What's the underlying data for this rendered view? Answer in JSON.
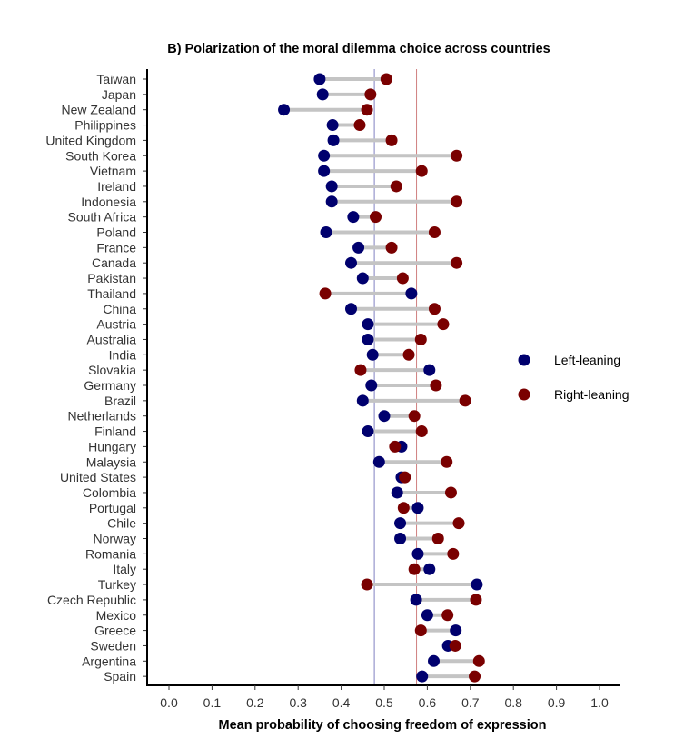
{
  "chart_data": {
    "type": "scatter",
    "subtype": "dumbbell",
    "title": "B) Polarization of the moral dilemma choice across countries",
    "xlabel": "Mean probability of choosing freedom of expression",
    "ylabel": "",
    "xlim": [
      0.0,
      1.0
    ],
    "xticks": [
      "0.0",
      "0.1",
      "0.2",
      "0.3",
      "0.4",
      "0.5",
      "0.6",
      "0.7",
      "0.8",
      "0.9",
      "1.0"
    ],
    "grid": false,
    "legend_position": "right",
    "categories": [
      "Taiwan",
      "Japan",
      "New Zealand",
      "Philippines",
      "United Kingdom",
      "South Korea",
      "Vietnam",
      "Ireland",
      "Indonesia",
      "South Africa",
      "Poland",
      "France",
      "Canada",
      "Pakistan",
      "Thailand",
      "China",
      "Austria",
      "Australia",
      "India",
      "Slovakia",
      "Germany",
      "Brazil",
      "Netherlands",
      "Finland",
      "Hungary",
      "Malaysia",
      "United States",
      "Colombia",
      "Portugal",
      "Chile",
      "Norway",
      "Romania",
      "Italy",
      "Turkey",
      "Czech Republic",
      "Mexico",
      "Greece",
      "Sweden",
      "Argentina",
      "Spain"
    ],
    "series": [
      {
        "name": "Left-leaning",
        "color": "#00006e",
        "values": [
          0.35,
          0.357,
          0.267,
          0.38,
          0.382,
          0.36,
          0.36,
          0.378,
          0.378,
          0.428,
          0.365,
          0.44,
          0.423,
          0.45,
          0.563,
          0.423,
          0.462,
          0.462,
          0.473,
          0.605,
          0.47,
          0.45,
          0.5,
          0.462,
          0.54,
          0.488,
          0.54,
          0.53,
          0.578,
          0.537,
          0.537,
          0.578,
          0.605,
          0.715,
          0.574,
          0.6,
          0.666,
          0.648,
          0.615,
          0.588
        ]
      },
      {
        "name": "Right-leaning",
        "color": "#7a0000",
        "values": [
          0.505,
          0.468,
          0.46,
          0.443,
          0.517,
          0.668,
          0.587,
          0.528,
          0.668,
          0.48,
          0.617,
          0.517,
          0.668,
          0.543,
          0.363,
          0.617,
          0.637,
          0.585,
          0.557,
          0.445,
          0.62,
          0.688,
          0.57,
          0.587,
          0.525,
          0.645,
          0.548,
          0.655,
          0.545,
          0.673,
          0.625,
          0.66,
          0.57,
          0.46,
          0.713,
          0.647,
          0.585,
          0.665,
          0.72,
          0.71
        ]
      }
    ],
    "reference_lines": [
      {
        "x": 0.477,
        "color": "#8080c0"
      },
      {
        "x": 0.575,
        "color": "#d08080"
      }
    ]
  }
}
